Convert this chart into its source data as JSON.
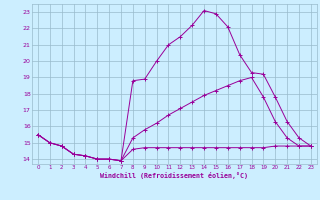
{
  "xlabel": "Windchill (Refroidissement éolien,°C)",
  "bg_color": "#cceeff",
  "line_color": "#990099",
  "grid_color": "#99bbcc",
  "x_ticks": [
    0,
    1,
    2,
    3,
    4,
    5,
    6,
    7,
    8,
    9,
    10,
    11,
    12,
    13,
    14,
    15,
    16,
    17,
    18,
    19,
    20,
    21,
    22,
    23
  ],
  "y_ticks": [
    14,
    15,
    16,
    17,
    18,
    19,
    20,
    21,
    22,
    23
  ],
  "xlim": [
    -0.5,
    23.5
  ],
  "ylim": [
    13.7,
    23.5
  ],
  "line1_x": [
    0,
    1,
    2,
    3,
    4,
    5,
    6,
    7,
    8,
    9,
    10,
    11,
    12,
    13,
    14,
    15,
    16,
    17,
    18,
    19,
    20,
    21,
    22,
    23
  ],
  "line1_y": [
    15.5,
    15.0,
    14.8,
    14.3,
    14.2,
    14.0,
    14.0,
    13.9,
    14.6,
    14.7,
    14.7,
    14.7,
    14.7,
    14.7,
    14.7,
    14.7,
    14.7,
    14.7,
    14.7,
    14.7,
    14.8,
    14.8,
    14.8,
    14.8
  ],
  "line2_x": [
    0,
    1,
    2,
    3,
    4,
    5,
    6,
    7,
    8,
    9,
    10,
    11,
    12,
    13,
    14,
    15,
    16,
    17,
    18,
    19,
    20,
    21,
    22,
    23
  ],
  "line2_y": [
    15.5,
    15.0,
    14.8,
    14.3,
    14.2,
    14.0,
    14.0,
    13.9,
    15.3,
    15.8,
    16.2,
    16.7,
    17.1,
    17.5,
    17.9,
    18.2,
    18.5,
    18.8,
    19.0,
    17.8,
    16.3,
    15.3,
    14.8,
    14.8
  ],
  "line3_x": [
    0,
    1,
    2,
    3,
    4,
    5,
    6,
    7,
    8,
    9,
    10,
    11,
    12,
    13,
    14,
    15,
    16,
    17,
    18,
    19,
    20,
    21,
    22,
    23
  ],
  "line3_y": [
    15.5,
    15.0,
    14.8,
    14.3,
    14.2,
    14.0,
    14.0,
    13.9,
    18.8,
    18.9,
    20.0,
    21.0,
    21.5,
    22.2,
    23.1,
    22.9,
    22.1,
    20.4,
    19.3,
    19.2,
    17.8,
    16.3,
    15.3,
    14.8
  ]
}
